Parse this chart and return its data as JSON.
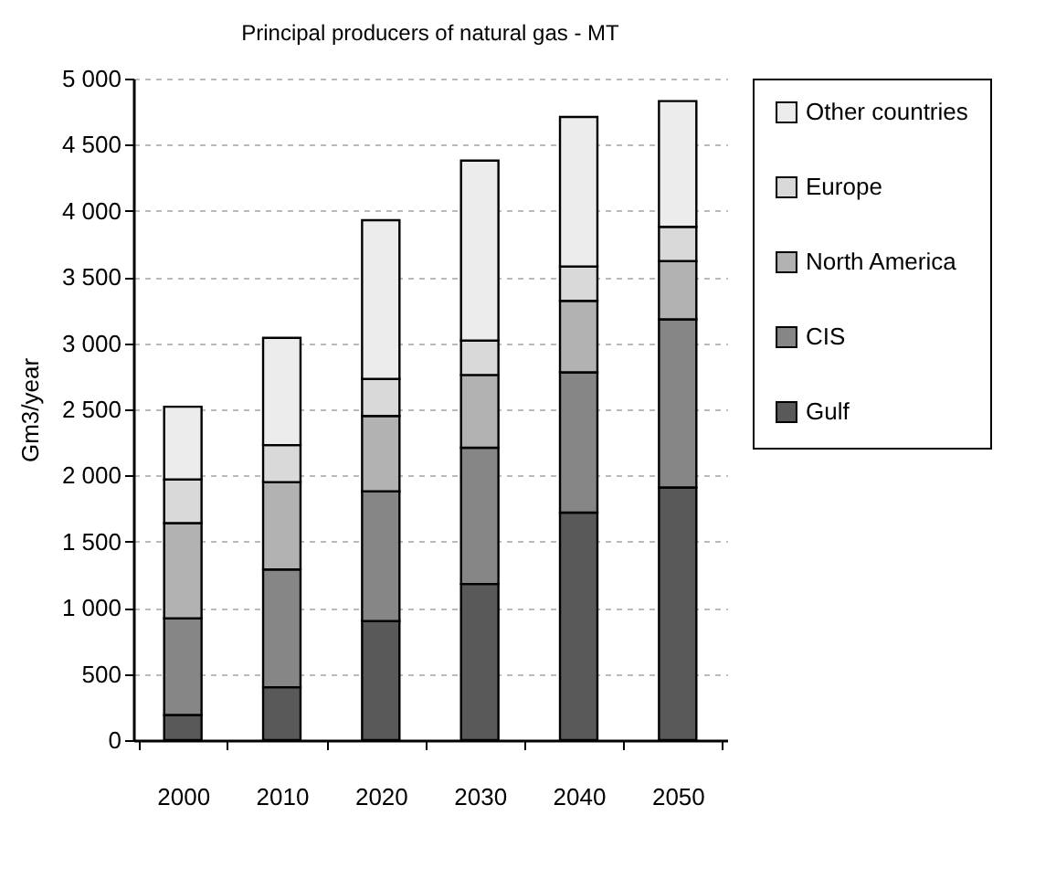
{
  "chart_data": {
    "type": "bar",
    "title": "Principal producers of natural gas - MT",
    "ylabel": "Gm3/year",
    "categories": [
      "2000",
      "2010",
      "2020",
      "2030",
      "2040",
      "2050"
    ],
    "stacked": true,
    "series": [
      {
        "name": "Gulf",
        "color": "#595959",
        "values": [
          190,
          400,
          900,
          1180,
          1720,
          1910
        ]
      },
      {
        "name": "CIS",
        "color": "#868686",
        "values": [
          730,
          890,
          980,
          1030,
          1060,
          1270
        ]
      },
      {
        "name": "North America",
        "color": "#b2b2b2",
        "values": [
          720,
          660,
          570,
          550,
          540,
          440
        ]
      },
      {
        "name": "Europe",
        "color": "#d9d9d9",
        "values": [
          330,
          280,
          280,
          260,
          260,
          260
        ]
      },
      {
        "name": "Other countries",
        "color": "#ececec",
        "values": [
          550,
          810,
          1200,
          1360,
          1130,
          950
        ]
      }
    ],
    "ylim": [
      0,
      5000
    ],
    "yticks": [
      0,
      500,
      {
        "value": 1000,
        "label": "1 000"
      },
      {
        "value": 1500,
        "label": "1 500"
      },
      {
        "value": 2000,
        "label": "2 000"
      },
      {
        "value": 2500,
        "label": "2 500"
      },
      {
        "value": 3000,
        "label": "3 000"
      },
      {
        "value": 3500,
        "label": "3 500"
      },
      {
        "value": 4000,
        "label": "4 000"
      },
      {
        "value": 4500,
        "label": "4 500"
      },
      {
        "value": 5000,
        "label": "5 000"
      }
    ],
    "grid": "y",
    "legend": "right"
  }
}
